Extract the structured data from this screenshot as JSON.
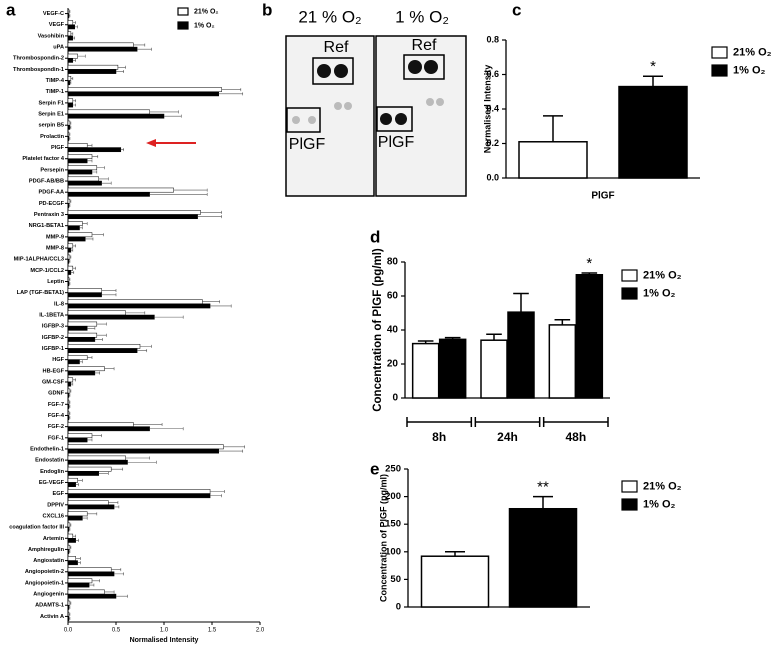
{
  "chart_data": [
    {
      "type": "bar",
      "panel": "a",
      "orientation": "horizontal",
      "x_label": "Normalised Intensity",
      "categories": [
        "VEGF-C",
        "VEGF",
        "Vasohibin",
        "uPA",
        "Thrombospondin-2",
        "Thrombospondin-1",
        "TIMP-4",
        "TIMP-1",
        "Serpin F1",
        "Serpin E1",
        "serpin B5",
        "Prolactin",
        "PlGF",
        "Platelet factor 4",
        "Persepin",
        "PDGF-AB/BB",
        "PDGF-AA",
        "PD-ECGF",
        "Pentraxin 3",
        "NRG1-BETA1",
        "MMP-9",
        "MMP-8",
        "MIP-1ALPHA/CCL3",
        "MCP-1/CCL2",
        "Leptin",
        "LAP (TGF-BETA1)",
        "IL-8",
        "IL-1BETA",
        "IGFBP-3",
        "IGFBP-2",
        "IGFBP-1",
        "HGF",
        "HB-EGF",
        "GM-CSF",
        "GDNF",
        "FGF-7",
        "FGF-4",
        "FGF-2",
        "FGF-1",
        "Endothelin-1",
        "Endostatin",
        "Endoglin",
        "EG-VEGF",
        "EGF",
        "DPPIV",
        "CXCL16",
        "coagulation factor III",
        "Artemin",
        "Amphiregulin",
        "Angiostatin",
        "Angiopoietin-2",
        "Angiopoietin-1",
        "Angiogenin",
        "ADAMTS-1",
        "Activin A"
      ],
      "series": [
        {
          "name": "21% O₂",
          "color": "#ffffff",
          "values": [
            0.01,
            0.05,
            0.03,
            0.68,
            0.1,
            0.52,
            0.03,
            1.6,
            0.05,
            0.85,
            0.02,
            0.01,
            0.2,
            0.25,
            0.3,
            0.32,
            1.1,
            0.02,
            1.38,
            0.15,
            0.25,
            0.05,
            0.02,
            0.05,
            0.01,
            0.35,
            1.4,
            0.6,
            0.3,
            0.3,
            0.75,
            0.2,
            0.38,
            0.05,
            0.02,
            0.01,
            0.01,
            0.68,
            0.25,
            1.62,
            0.6,
            0.45,
            0.1,
            1.48,
            0.42,
            0.2,
            0.02,
            0.05,
            0.02,
            0.08,
            0.45,
            0.25,
            0.38,
            0.02,
            0.01
          ],
          "errors": [
            0.01,
            0.03,
            0.02,
            0.12,
            0.08,
            0.08,
            0.02,
            0.2,
            0.03,
            0.3,
            0.01,
            0.01,
            0.05,
            0.06,
            0.08,
            0.1,
            0.35,
            0.01,
            0.22,
            0.05,
            0.12,
            0.03,
            0.01,
            0.03,
            0.01,
            0.15,
            0.18,
            0.2,
            0.1,
            0.1,
            0.12,
            0.05,
            0.1,
            0.03,
            0.01,
            0.01,
            0.01,
            0.3,
            0.1,
            0.22,
            0.25,
            0.12,
            0.05,
            0.15,
            0.1,
            0.1,
            0.01,
            0.03,
            0.01,
            0.05,
            0.1,
            0.08,
            0.1,
            0.01,
            0.01
          ]
        },
        {
          "name": "1% O₂",
          "color": "#000000",
          "values": [
            0.01,
            0.07,
            0.05,
            0.72,
            0.05,
            0.5,
            0.02,
            1.57,
            0.05,
            1.0,
            0.02,
            0.01,
            0.55,
            0.2,
            0.25,
            0.35,
            0.85,
            0.01,
            1.35,
            0.12,
            0.18,
            0.03,
            0.01,
            0.03,
            0.01,
            0.35,
            1.48,
            0.9,
            0.2,
            0.28,
            0.72,
            0.12,
            0.28,
            0.03,
            0.01,
            0.01,
            0.01,
            0.85,
            0.2,
            1.57,
            0.62,
            0.32,
            0.08,
            1.48,
            0.48,
            0.15,
            0.01,
            0.08,
            0.01,
            0.1,
            0.48,
            0.22,
            0.5,
            0.01,
            0.01
          ],
          "errors": [
            0.01,
            0.03,
            0.02,
            0.15,
            0.03,
            0.08,
            0.01,
            0.25,
            0.03,
            0.18,
            0.01,
            0.01,
            0.03,
            0.05,
            0.05,
            0.1,
            0.6,
            0.01,
            0.25,
            0.03,
            0.08,
            0.02,
            0.01,
            0.03,
            0.01,
            0.15,
            0.22,
            0.3,
            0.08,
            0.08,
            0.1,
            0.03,
            0.05,
            0.02,
            0.01,
            0.01,
            0.01,
            0.35,
            0.05,
            0.25,
            0.3,
            0.1,
            0.03,
            0.12,
            0.05,
            0.05,
            0.01,
            0.03,
            0.01,
            0.03,
            0.1,
            0.05,
            0.12,
            0.01,
            0.01
          ]
        }
      ],
      "xlim": [
        0,
        2
      ],
      "xticks": [
        {
          "value": 0,
          "label": "0.0"
        },
        0.5,
        {
          "value": 1,
          "label": "1.0"
        },
        1.5,
        {
          "value": 2,
          "label": "2.0"
        }
      ]
    },
    {
      "type": "bar",
      "panel": "c",
      "y_label": "Normalised Intensity",
      "categories": [
        "PlGF"
      ],
      "series": [
        {
          "name": "21% O₂",
          "color": "#ffffff",
          "values": [
            0.21
          ],
          "errors": [
            0.15
          ]
        },
        {
          "name": "1% O₂",
          "color": "#000000",
          "values": [
            0.53
          ],
          "errors": [
            0.06
          ],
          "significance": [
            "*"
          ]
        }
      ],
      "ylim": [
        0,
        0.8
      ],
      "yticks": [
        {
          "value": 0,
          "label": "0.0"
        },
        0.2,
        0.4,
        0.6,
        0.8
      ]
    },
    {
      "type": "bar",
      "panel": "d",
      "y_label": "Concentration of PlGF (pg/ml)",
      "categories": [
        "8h",
        "24h",
        "48h"
      ],
      "series": [
        {
          "name": "21% O₂",
          "color": "#ffffff",
          "values": [
            32,
            34,
            43
          ],
          "errors": [
            1.5,
            3.5,
            3
          ]
        },
        {
          "name": "1% O₂",
          "color": "#000000",
          "values": [
            34.5,
            50.5,
            72.5
          ],
          "errors": [
            1,
            11,
            1
          ],
          "significance": [
            null,
            null,
            "*"
          ]
        }
      ],
      "ylim": [
        0,
        80
      ],
      "yticks": [
        0,
        20,
        40,
        60,
        80
      ]
    },
    {
      "type": "bar",
      "panel": "e",
      "y_label": "Concentration of PlGF (pg/ml)",
      "categories": [
        null
      ],
      "series": [
        {
          "name": "21% O₂",
          "color": "#ffffff",
          "values": [
            92
          ],
          "errors": [
            8
          ]
        },
        {
          "name": "1% O₂",
          "color": "#000000",
          "values": [
            178
          ],
          "errors": [
            22
          ],
          "significance": [
            "**"
          ]
        }
      ],
      "ylim": [
        0,
        250
      ],
      "yticks": [
        0,
        50,
        100,
        150,
        200,
        250
      ]
    }
  ],
  "blot": {
    "panel": "b",
    "membranes": [
      {
        "title": "21 % O₂",
        "ref_label": "Ref",
        "target_label": "PlGF"
      },
      {
        "title": "1 % O₂",
        "ref_label": "Ref",
        "target_label": "PlGF"
      }
    ]
  }
}
